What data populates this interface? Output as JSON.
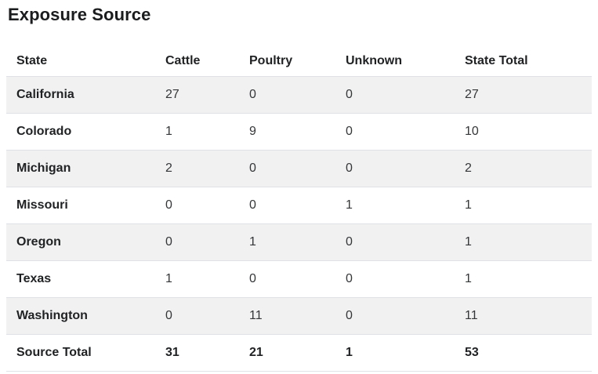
{
  "chart_data": {
    "type": "table",
    "title": "Exposure Source",
    "columns": [
      "State",
      "Cattle",
      "Poultry",
      "Unknown",
      "State Total"
    ],
    "rows": [
      [
        "California",
        27,
        0,
        0,
        27
      ],
      [
        "Colorado",
        1,
        9,
        0,
        10
      ],
      [
        "Michigan",
        2,
        0,
        0,
        2
      ],
      [
        "Missouri",
        0,
        0,
        1,
        1
      ],
      [
        "Oregon",
        0,
        1,
        0,
        1
      ],
      [
        "Texas",
        1,
        0,
        0,
        1
      ],
      [
        "Washington",
        0,
        11,
        0,
        11
      ],
      [
        "Source Total",
        31,
        21,
        1,
        53
      ]
    ],
    "layout": {
      "stripe_color": "#f1f1f2",
      "border_color": "#dfe1e6",
      "striped_rows": "odd",
      "totals_row_bold": true
    }
  }
}
